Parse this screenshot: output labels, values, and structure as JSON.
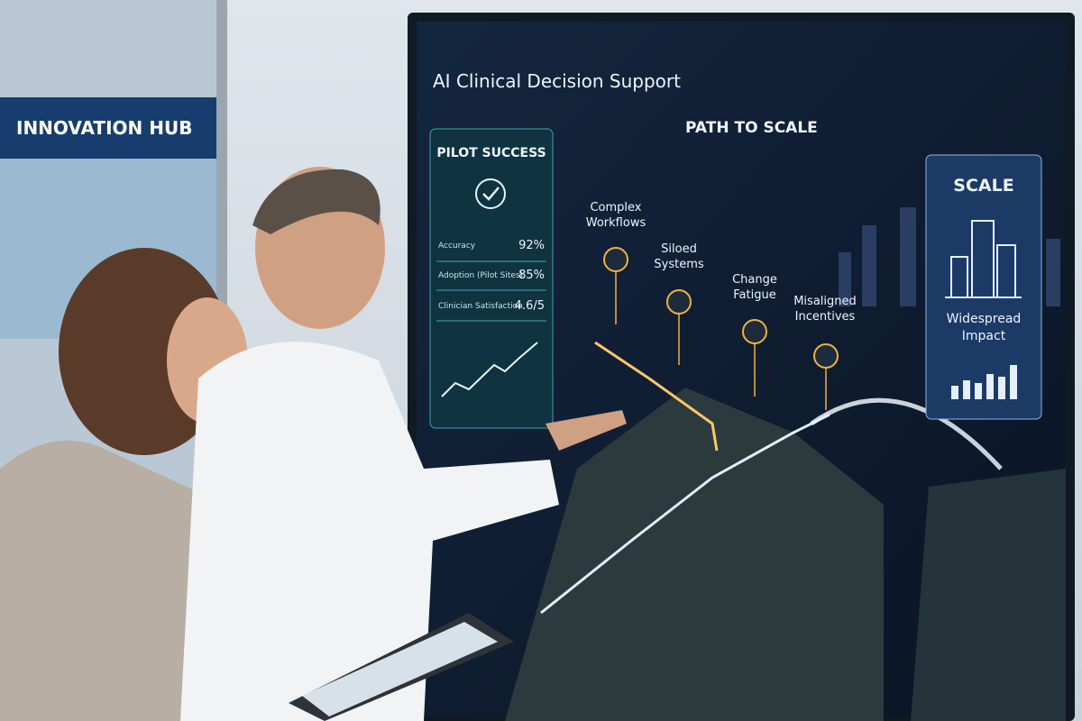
{
  "sign": "INNOVATION HUB",
  "screen": {
    "title": "AI Clinical Decision Support",
    "path_title": "PATH TO SCALE",
    "pilot": {
      "title": "PILOT SUCCESS",
      "metrics": [
        {
          "label": "Accuracy",
          "value": "92%"
        },
        {
          "label": "Adoption (Pilot Sites)",
          "value": "85%"
        },
        {
          "label": "Clinician Satisfaction",
          "value": "4.6/5"
        }
      ]
    },
    "barriers": [
      "Complex Workflows",
      "Siloed Systems",
      "Change Fatigue",
      "Misaligned Incentives"
    ],
    "scale": {
      "title": "SCALE",
      "subtitle": "Widespread Impact"
    }
  }
}
